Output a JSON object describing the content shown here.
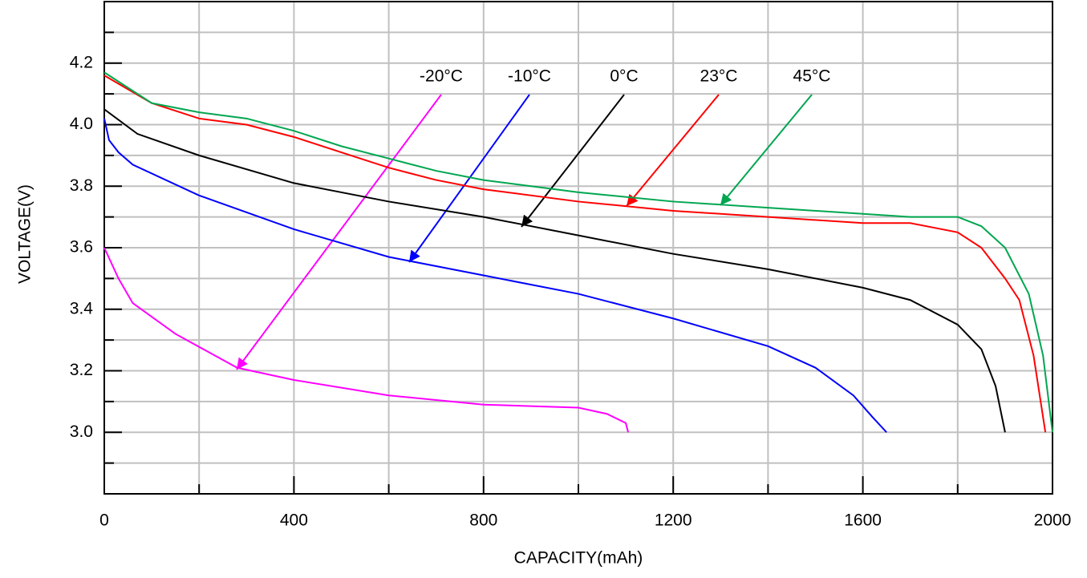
{
  "chart_data": {
    "type": "line",
    "x_label": "CAPACITY(mAh)",
    "y_label": "VOLTAGE(V)",
    "xlim": [
      0,
      2000
    ],
    "ylim": [
      2.8,
      4.4
    ],
    "xticks": [
      0,
      400,
      800,
      1200,
      1600,
      2000
    ],
    "xminor_ticks": [
      200,
      600,
      1000,
      1400,
      1800
    ],
    "yticks": [
      {
        "value": 3,
        "label": "3.0"
      },
      3.2,
      3.4,
      3.6,
      3.8,
      {
        "value": 4,
        "label": "4.0"
      },
      4.2
    ],
    "yminor_ticks": [
      2.9,
      3.1,
      3.3,
      3.5,
      3.7,
      3.9,
      4.1,
      4.3
    ],
    "grid": true,
    "series": [
      {
        "name": "-20°C",
        "color": "#ff00ff",
        "x": [
          0,
          30,
          60,
          150,
          280,
          400,
          600,
          800,
          1000,
          1060,
          1100,
          1105
        ],
        "values": [
          3.6,
          3.5,
          3.42,
          3.32,
          3.21,
          3.17,
          3.12,
          3.09,
          3.08,
          3.06,
          3.03,
          3.0
        ]
      },
      {
        "name": "-10°C",
        "color": "#0000ff",
        "x": [
          0,
          10,
          30,
          60,
          200,
          400,
          600,
          800,
          1000,
          1200,
          1400,
          1500,
          1580,
          1620,
          1650
        ],
        "values": [
          4.02,
          3.95,
          3.91,
          3.87,
          3.77,
          3.66,
          3.57,
          3.51,
          3.45,
          3.37,
          3.28,
          3.21,
          3.12,
          3.05,
          3.0
        ]
      },
      {
        "name": "0°C",
        "color": "#000000",
        "x": [
          0,
          70,
          200,
          400,
          600,
          800,
          1000,
          1200,
          1400,
          1600,
          1700,
          1800,
          1850,
          1880,
          1900
        ],
        "values": [
          4.05,
          3.97,
          3.9,
          3.81,
          3.75,
          3.7,
          3.64,
          3.58,
          3.53,
          3.47,
          3.43,
          3.35,
          3.27,
          3.15,
          3.0
        ]
      },
      {
        "name": "23°C",
        "color": "#ff0000",
        "x": [
          0,
          100,
          200,
          300,
          400,
          500,
          600,
          700,
          800,
          1000,
          1200,
          1400,
          1600,
          1700,
          1800,
          1850,
          1900,
          1930,
          1960,
          1985
        ],
        "values": [
          4.16,
          4.07,
          4.02,
          4.0,
          3.96,
          3.91,
          3.86,
          3.82,
          3.79,
          3.75,
          3.72,
          3.7,
          3.68,
          3.68,
          3.65,
          3.6,
          3.5,
          3.43,
          3.25,
          3.0
        ]
      },
      {
        "name": "45°C",
        "color": "#00a650",
        "x": [
          0,
          100,
          200,
          300,
          400,
          500,
          600,
          700,
          800,
          1000,
          1200,
          1400,
          1600,
          1700,
          1800,
          1850,
          1900,
          1950,
          1980,
          2000
        ],
        "values": [
          4.17,
          4.07,
          4.04,
          4.02,
          3.98,
          3.93,
          3.89,
          3.85,
          3.82,
          3.78,
          3.75,
          3.73,
          3.71,
          3.7,
          3.7,
          3.67,
          3.6,
          3.45,
          3.25,
          3.0
        ]
      }
    ]
  }
}
